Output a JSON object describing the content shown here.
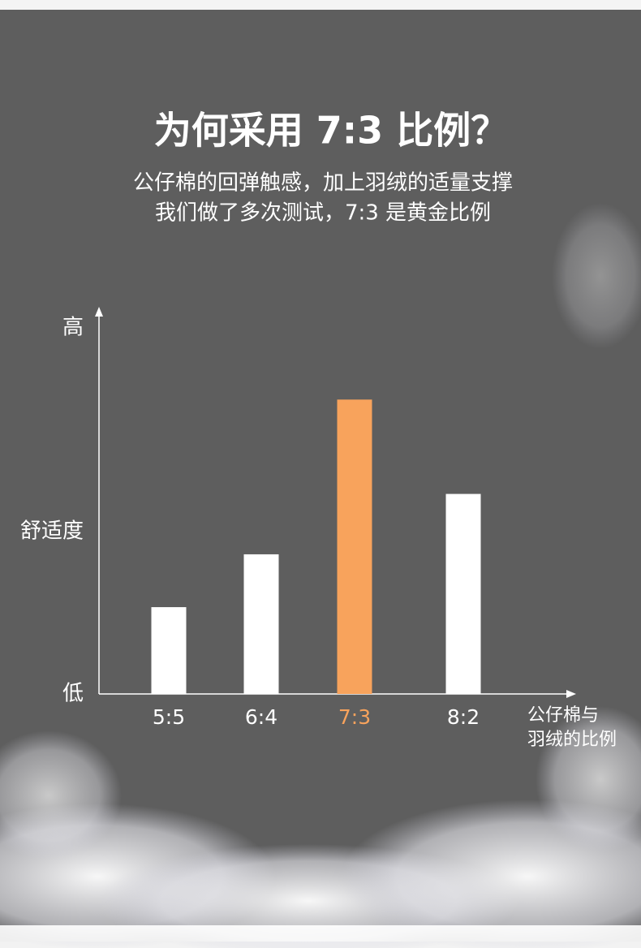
{
  "chart_data": {
    "type": "bar",
    "title": "为何采用 7:3 比例？",
    "subtitle": [
      "公仔棉的回弹触感，加上羽绒的适量支撑",
      "我们做了多次测试，7:3 是黄金比例"
    ],
    "categories": [
      "5:5",
      "6:4",
      "7:3",
      "8:2"
    ],
    "values": [
      23,
      37,
      78,
      53
    ],
    "colors": [
      "#ffffff",
      "#ffffff",
      "#f8a35c",
      "#ffffff"
    ],
    "ylim": [
      0,
      100
    ],
    "yticks": [
      {
        "value": 0,
        "label": "低"
      },
      {
        "value": 43,
        "label": "舒适度"
      },
      {
        "value": 97,
        "label": "高"
      }
    ],
    "x_label": [
      "公仔棉与",
      "羽绒的比例"
    ],
    "grid": false
  }
}
